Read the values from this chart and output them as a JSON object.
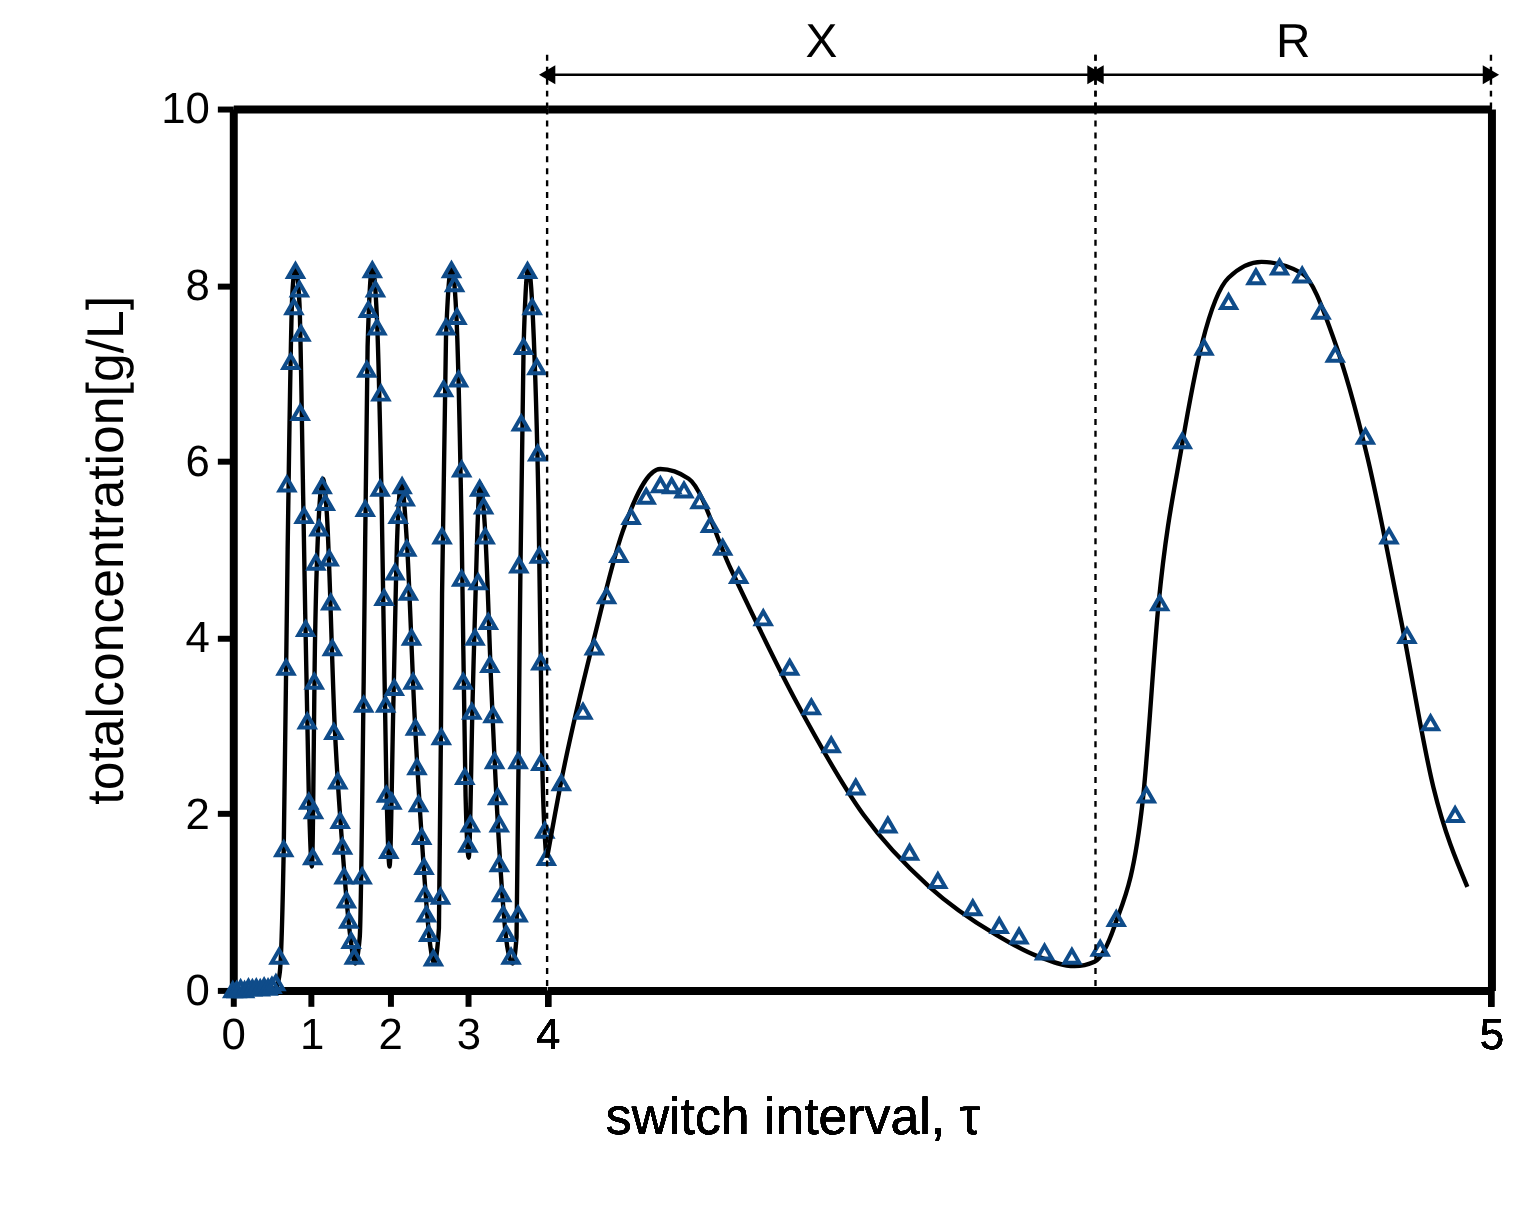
{
  "chart_data": [
    {
      "type": "scatter",
      "ylabel": "totalconcentration[g/L]",
      "xlim": [
        0,
        4
      ],
      "xticks": [
        0,
        1,
        2,
        3,
        {
          "value": 4,
          "label": null
        }
      ],
      "ylim": [
        0,
        10
      ],
      "yticks": [
        0,
        2,
        4,
        6,
        8,
        10
      ],
      "grid": false,
      "series": [
        {
          "type": "line",
          "color": "#000000",
          "line_style": "solid",
          "marker": "none",
          "x": [
            0,
            0.55,
            0.6,
            0.65,
            0.7,
            0.76,
            0.8,
            0.85,
            0.9,
            0.97,
            1.01,
            1.05,
            1.1,
            1.15,
            1.2,
            1.3,
            1.4,
            1.5,
            1.56,
            1.62,
            1.67,
            1.72,
            1.78,
            1.84,
            1.9,
            1.96,
            2.0,
            2.05,
            2.1,
            2.15,
            2.22,
            2.32,
            2.42,
            2.52,
            2.57,
            2.63,
            2.67,
            2.72,
            2.79,
            2.85,
            2.92,
            2.97,
            3.01,
            3.06,
            3.12,
            3.15,
            3.22,
            3.3,
            3.4,
            3.5,
            3.57,
            3.62,
            3.66,
            3.71,
            3.77,
            3.83,
            3.9,
            3.95,
            4.0
          ],
          "values": [
            0,
            0.02,
            0.2,
            1.6,
            5,
            7.9,
            8.2,
            7.8,
            5.5,
            2.2,
            1.4,
            4,
            5.4,
            5.8,
            5.4,
            3,
            1.6,
            0.6,
            0.3,
            0.6,
            3.5,
            7.3,
            8.2,
            7.6,
            5.5,
            2.3,
            1.4,
            3.3,
            5.2,
            5.75,
            5.1,
            3.1,
            1.6,
            0.5,
            0.3,
            0.7,
            4.5,
            7.4,
            8.2,
            7.7,
            5.2,
            2.2,
            1.5,
            3.3,
            5.2,
            5.75,
            5.2,
            3.4,
            1.6,
            0.5,
            0.3,
            0.6,
            4,
            7.3,
            8.2,
            7.6,
            5.5,
            2.5,
            1.5
          ]
        },
        {
          "color": "#0f4c8a",
          "marker": "triangle",
          "x": [
            0,
            0.05,
            0.1,
            0.15,
            0.2,
            0.25,
            0.3,
            0.35,
            0.4,
            0.45,
            0.5,
            0.55,
            0.59,
            0.65,
            0.68,
            0.69,
            0.74,
            0.78,
            0.8,
            0.85,
            0.87,
            0.86,
            0.91,
            0.93,
            0.95,
            0.97,
            1.02,
            1.03,
            1.04,
            1.06,
            1.1,
            1.14,
            1.18,
            1.23,
            1.25,
            1.27,
            1.29,
            1.34,
            1.37,
            1.4,
            1.42,
            1.45,
            1.48,
            1.51,
            1.55,
            1.65,
            1.67,
            1.69,
            1.71,
            1.73,
            1.78,
            1.82,
            1.84,
            1.89,
            1.88,
            1.93,
            1.95,
            1.96,
            1.99,
            2.03,
            2.06,
            2.07,
            2.11,
            2.16,
            2.2,
            2.22,
            2.24,
            2.28,
            2.3,
            2.33,
            2.35,
            2.37,
            2.41,
            2.44,
            2.45,
            2.47,
            2.5,
            2.56,
            2.65,
            2.66,
            2.67,
            2.69,
            2.72,
            2.79,
            2.83,
            2.86,
            2.88,
            2.92,
            2.92,
            2.94,
            2.96,
            3.0,
            3.03,
            3.05,
            3.09,
            3.13,
            3.15,
            3.2,
            3.22,
            3.26,
            3.28,
            3.32,
            3.34,
            3.38,
            3.4,
            3.4,
            3.43,
            3.45,
            3.49,
            3.55,
            3.64,
            3.64,
            3.65,
            3.68,
            3.71,
            3.76,
            3.82,
            3.88,
            3.89,
            3.91,
            3.93,
            3.93,
            3.98,
            4.0
          ],
          "values": [
            0,
            0,
            0.02,
            0,
            0.03,
            0.02,
            0.03,
            0.02,
            0.04,
            0.03,
            0.05,
            0.08,
            0.38,
            1.6,
            3.66,
            5.74,
            7.13,
            7.75,
            8.16,
            7.95,
            7.45,
            6.55,
            5.38,
            4.1,
            3.05,
            2.14,
            1.51,
            2.03,
            3.5,
            4.85,
            5.24,
            5.72,
            5.53,
            4.9,
            4.4,
            3.88,
            2.93,
            2.37,
            1.92,
            1.63,
            1.29,
            1.02,
            0.79,
            0.56,
            0.38,
            1.29,
            3.24,
            5.46,
            7.04,
            7.72,
            8.17,
            7.95,
            7.52,
            6.77,
            5.69,
            4.45,
            3.24,
            2.22,
            1.58,
            2.14,
            3.43,
            4.74,
            5.38,
            5.72,
            5.58,
            5.01,
            4.51,
            4.0,
            3.5,
            2.98,
            2.53,
            2.11,
            1.74,
            1.4,
            1.09,
            0.86,
            0.64,
            0.36,
            1.06,
            2.87,
            5.15,
            6.82,
            7.52,
            8.17,
            8.01,
            7.64,
            6.93,
            5.91,
            4.67,
            3.5,
            2.42,
            1.65,
            1.88,
            3.16,
            4.0,
            4.63,
            5.69,
            5.49,
            5.15,
            4.18,
            3.69,
            3.12,
            2.6,
            2.19,
            1.88,
            1.43,
            1.09,
            0.86,
            0.64,
            0.38,
            0.86,
            2.6,
            4.82,
            6.43,
            7.3,
            8.16,
            7.75,
            7.07,
            6.09,
            4.93,
            3.72,
            2.58,
            1.81,
            1.5
          ]
        }
      ]
    },
    {
      "type": "scatter",
      "xlabel": "switch interval, τ",
      "xlim": [
        4,
        5
      ],
      "xticks": [
        4,
        5
      ],
      "ylim": [
        0,
        10
      ],
      "yticks": [
        0,
        2,
        4,
        6,
        8,
        10
      ],
      "grid": false,
      "tick_labels": "x",
      "annotations": [
        "X",
        "R"
      ],
      "ref_lines": [
        {
          "axis": "x",
          "value": 4,
          "line_style": "dotted",
          "color": "#000000"
        },
        {
          "axis": "x",
          "value": 4.581,
          "line_style": "dotted",
          "color": "#000000"
        }
      ],
      "series": [
        {
          "type": "line",
          "color": "#000000",
          "line_style": "solid",
          "marker": "none",
          "x": [
            4.0,
            4.015,
            4.05,
            4.08,
            4.12,
            4.15,
            4.194,
            4.264,
            4.335,
            4.405,
            4.475,
            4.52,
            4.559,
            4.58,
            4.601,
            4.631,
            4.648,
            4.673,
            4.694,
            4.722,
            4.757,
            4.8,
            4.833,
            4.869,
            4.905,
            4.939,
            4.975
          ],
          "values": [
            1.5,
            2.37,
            4.0,
            5.2,
            5.91,
            5.8,
            4.79,
            3.27,
            1.99,
            1.17,
            0.63,
            0.38,
            0.27,
            0.32,
            0.72,
            2.14,
            4.4,
            6.2,
            7.34,
            8.08,
            8.26,
            8.13,
            7.4,
            6.05,
            4.18,
            2.3,
            1.17
          ]
        },
        {
          "color": "#0f4c8a",
          "marker": "triangle",
          "x": [
            4.015,
            4.038,
            4.05,
            4.063,
            4.076,
            4.089,
            4.105,
            4.12,
            4.132,
            4.145,
            4.162,
            4.173,
            4.186,
            4.203,
            4.229,
            4.257,
            4.28,
            4.301,
            4.327,
            4.361,
            4.384,
            4.414,
            4.451,
            4.479,
            4.5,
            4.527,
            4.556,
            4.586,
            4.603,
            4.635,
            4.649,
            4.673,
            4.696,
            4.722,
            4.751,
            4.776,
            4.8,
            4.82,
            4.835,
            4.867,
            4.892,
            4.911,
            4.936,
            4.962
          ],
          "values": [
            2.35,
            3.16,
            3.89,
            4.47,
            4.94,
            5.37,
            5.6,
            5.73,
            5.72,
            5.67,
            5.55,
            5.28,
            5.02,
            4.7,
            4.22,
            3.66,
            3.21,
            2.78,
            2.3,
            1.87,
            1.56,
            1.24,
            0.93,
            0.73,
            0.61,
            0.43,
            0.38,
            0.47,
            0.81,
            2.21,
            4.39,
            6.23,
            7.29,
            7.81,
            8.09,
            8.2,
            8.11,
            7.7,
            7.21,
            6.28,
            5.15,
            4.02,
            3.03,
            1.99
          ]
        }
      ]
    }
  ]
}
